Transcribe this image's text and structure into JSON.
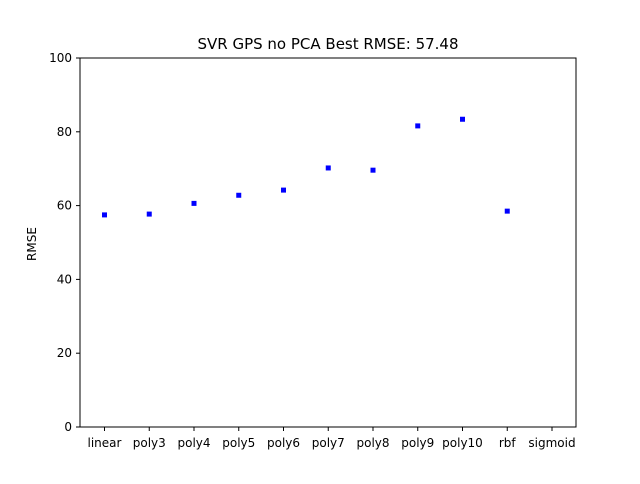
{
  "chart_data": {
    "type": "scatter",
    "title": "SVR GPS no PCA Best RMSE: 57.48",
    "xlabel": "",
    "ylabel": "RMSE",
    "categories": [
      "linear",
      "poly3",
      "poly4",
      "poly5",
      "poly6",
      "poly7",
      "poly8",
      "poly9",
      "poly10",
      "rbf",
      "sigmoid"
    ],
    "values": [
      57.48,
      57.7,
      60.6,
      62.8,
      64.2,
      70.2,
      69.6,
      81.6,
      83.4,
      58.5,
      null
    ],
    "ylim": [
      0,
      100
    ],
    "yticks": [
      0,
      20,
      40,
      60,
      80,
      100
    ],
    "grid": false,
    "marker_color": "#0000ff"
  }
}
